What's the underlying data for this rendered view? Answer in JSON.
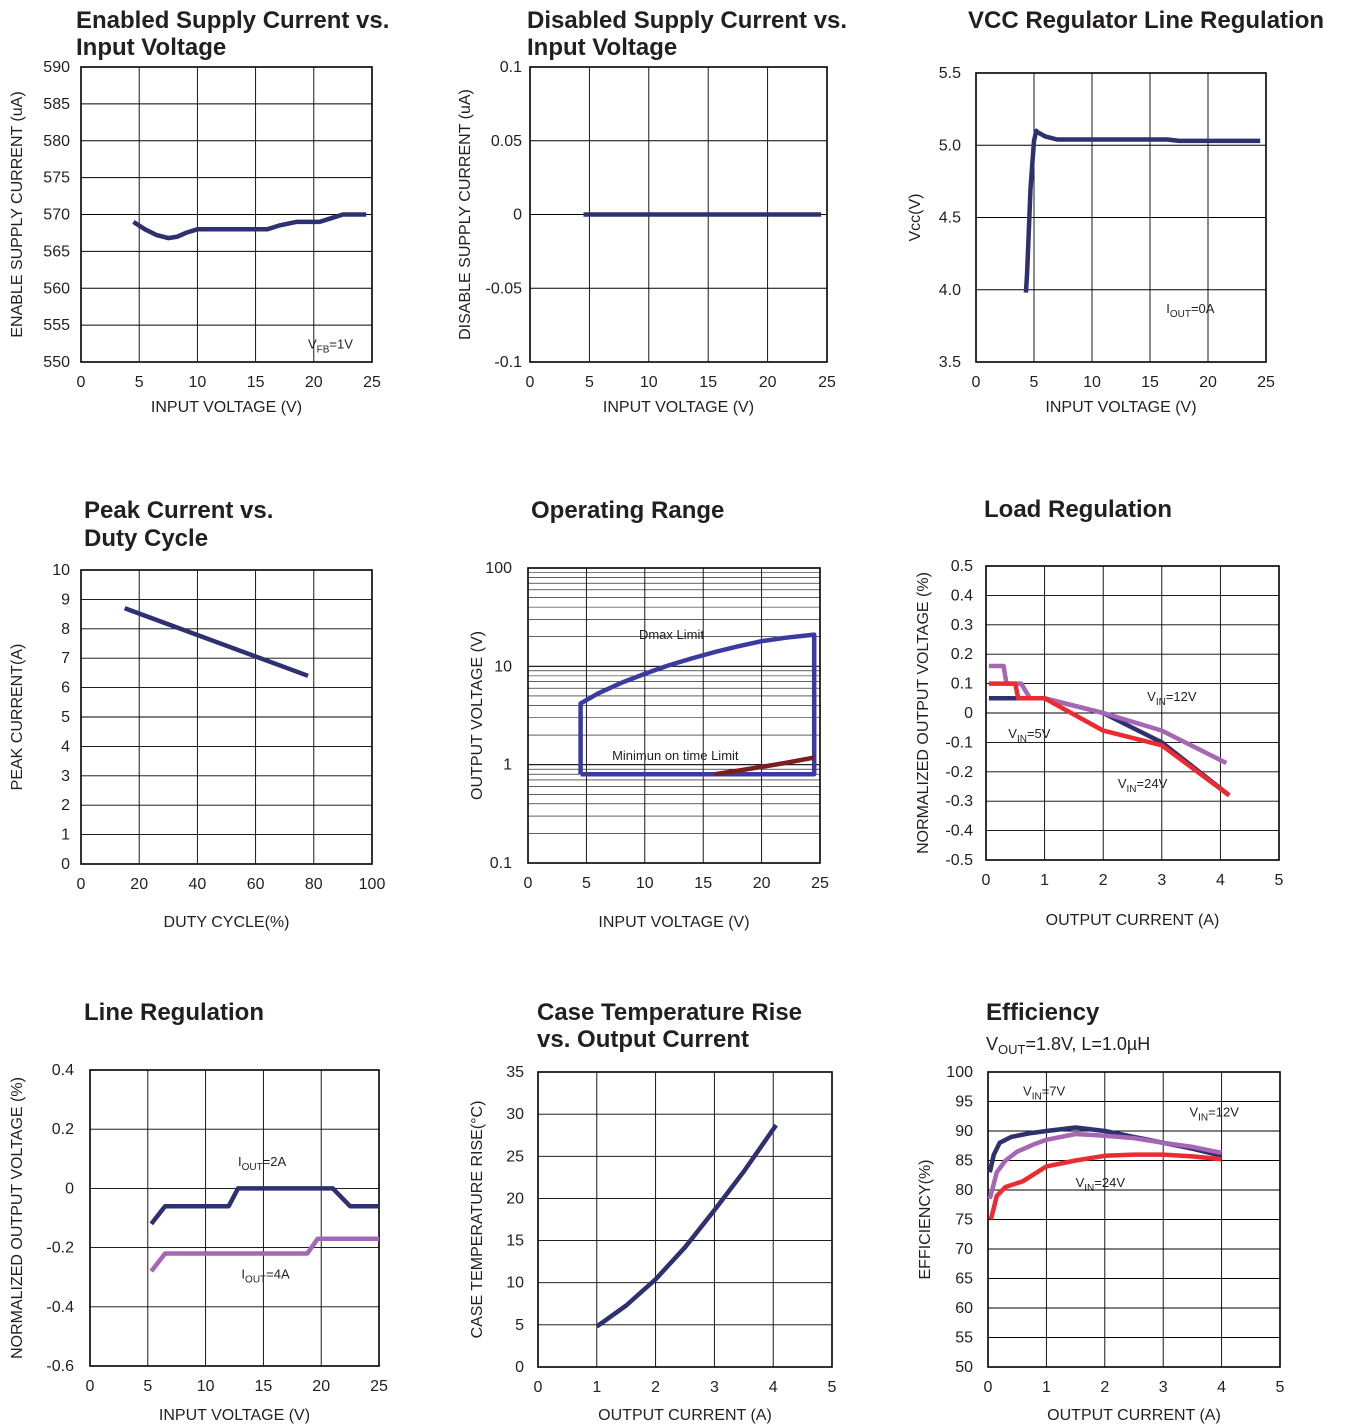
{
  "chart_data": [
    {
      "id": "enabled_supply",
      "type": "line",
      "title": [
        "Enabled Supply Current vs.",
        "Input Voltage"
      ],
      "xlabel": "INPUT VOLTAGE (V)",
      "ylabel": "ENABLE SUPPLY CURRENT (uA)",
      "xlim": [
        0,
        25
      ],
      "ylim": [
        550,
        590
      ],
      "xticks": [
        0,
        5,
        10,
        15,
        20,
        25
      ],
      "xtick_labels": [
        "0",
        "5",
        "10",
        "15",
        "20",
        "25"
      ],
      "yticks": [
        550,
        555,
        560,
        565,
        570,
        575,
        580,
        585,
        590
      ],
      "ytick_labels": [
        "550",
        "555",
        "560",
        "565",
        "570",
        "575",
        "580",
        "585",
        "590"
      ],
      "series": [
        {
          "color": "#2e3070",
          "x": [
            4.5,
            5.5,
            6.5,
            7.5,
            8.3,
            9,
            10,
            12,
            14,
            16,
            17,
            18.5,
            20.5,
            21.5,
            22.5,
            24.5
          ],
          "y": [
            569,
            568,
            567.2,
            566.8,
            567,
            567.5,
            568,
            568,
            568,
            568,
            568.5,
            569,
            569,
            569.5,
            570,
            570
          ]
        }
      ],
      "annotations": [
        {
          "text": "V",
          "sub": "FB",
          "rest": "=1V",
          "x": 19.5,
          "y": 551.8
        }
      ]
    },
    {
      "id": "disabled_supply",
      "type": "line",
      "title": [
        "Disabled Supply Current vs.",
        "Input Voltage"
      ],
      "xlabel": "INPUT VOLTAGE (V)",
      "ylabel": "DISABLE SUPPLY CURRENT (uA)",
      "xlim": [
        0,
        25
      ],
      "ylim": [
        -0.1,
        0.1
      ],
      "xticks": [
        0,
        5,
        10,
        15,
        20,
        25
      ],
      "xtick_labels": [
        "0",
        "5",
        "10",
        "15",
        "20",
        "25"
      ],
      "yticks": [
        -0.1,
        -0.05,
        0,
        0.05,
        0.1
      ],
      "ytick_labels": [
        "-0.1",
        "-0.05",
        "0",
        "0.05",
        "0.1"
      ],
      "series": [
        {
          "color": "#2e3070",
          "x": [
            4.5,
            24.5
          ],
          "y": [
            0,
            0
          ]
        }
      ],
      "annotations": []
    },
    {
      "id": "vcc_regulator",
      "type": "line",
      "title": [
        "VCC Regulator Line Regulation"
      ],
      "xlabel": "INPUT VOLTAGE (V)",
      "ylabel": "Vcc(V)",
      "xlim": [
        0,
        25
      ],
      "ylim": [
        3.5,
        5.5
      ],
      "xticks": [
        0,
        5,
        10,
        15,
        20,
        25
      ],
      "xtick_labels": [
        "0",
        "5",
        "10",
        "15",
        "20",
        "25"
      ],
      "yticks": [
        3.5,
        4.0,
        4.5,
        5.0,
        5.5
      ],
      "ytick_labels": [
        "3.5",
        "4.0",
        "4.5",
        "5.0",
        "5.5"
      ],
      "series": [
        {
          "color": "#2e3070",
          "x": [
            4.3,
            4.4,
            4.5,
            4.7,
            5.0,
            5.2,
            5.3,
            6.0,
            7.0,
            10,
            16.5,
            17.5,
            24.5
          ],
          "y": [
            3.98,
            4.1,
            4.3,
            4.7,
            5.03,
            5.1,
            5.09,
            5.06,
            5.04,
            5.04,
            5.04,
            5.03,
            5.03
          ]
        }
      ],
      "annotations": [
        {
          "text": "I",
          "sub": "OUT",
          "rest": "=0A",
          "x": 16.4,
          "y": 3.84
        }
      ]
    },
    {
      "id": "peak_current",
      "type": "line",
      "title": [
        "Peak Current vs.",
        "Duty Cycle"
      ],
      "xlabel": "DUTY CYCLE(%)",
      "ylabel": "PEAK CURRENT(A)",
      "xlim": [
        0,
        100
      ],
      "ylim": [
        0,
        10
      ],
      "xticks": [
        0,
        20,
        40,
        60,
        80,
        100
      ],
      "xtick_labels": [
        "0",
        "20",
        "40",
        "60",
        "80",
        "100"
      ],
      "yticks": [
        0,
        1,
        2,
        3,
        4,
        5,
        6,
        7,
        8,
        9,
        10
      ],
      "ytick_labels": [
        "0",
        "1",
        "2",
        "3",
        "4",
        "5",
        "6",
        "7",
        "8",
        "9",
        "10"
      ],
      "series": [
        {
          "color": "#2e3070",
          "x": [
            15,
            78
          ],
          "y": [
            8.7,
            6.4
          ]
        }
      ],
      "annotations": []
    },
    {
      "id": "operating_range",
      "type": "line",
      "title": [
        "Operating Range"
      ],
      "xlabel": "INPUT VOLTAGE (V)",
      "ylabel": "OUTPUT VOLTAGE (V)",
      "xlim": [
        0,
        25
      ],
      "ylim": [
        0.1,
        100
      ],
      "yscale": "log",
      "xticks": [
        0,
        5,
        10,
        15,
        20,
        25
      ],
      "xtick_labels": [
        "0",
        "5",
        "10",
        "15",
        "20",
        "25"
      ],
      "yticks": [
        0.1,
        1,
        10,
        100
      ],
      "ytick_labels": [
        "0.1",
        "1",
        "10",
        "100"
      ],
      "series": [
        {
          "color": "#3a3aa0",
          "x": [
            4.5,
            4.5,
            6,
            8,
            10,
            12,
            14,
            16,
            18,
            20,
            22,
            24.5,
            24.5,
            4.5
          ],
          "y": [
            0.8,
            4.2,
            5.3,
            6.8,
            8.4,
            10.2,
            12,
            14,
            16,
            18,
            19.5,
            21,
            0.8,
            0.8
          ]
        },
        {
          "color": "#7a1e1e",
          "x": [
            16,
            18,
            20,
            22,
            24.5
          ],
          "y": [
            0.8,
            0.87,
            0.95,
            1.04,
            1.18
          ]
        }
      ],
      "annotations": [
        {
          "text": "Dmax Limit",
          "x": 9.5,
          "y": 19
        },
        {
          "text": "Minimun on time Limit",
          "x": 7.2,
          "y": 1.12
        }
      ]
    },
    {
      "id": "load_regulation",
      "type": "line",
      "title": [
        "Load Regulation"
      ],
      "xlabel": "OUTPUT CURRENT (A)",
      "ylabel": "NORMALIZED OUTPUT VOLTAGE (%)",
      "xlim": [
        0,
        5
      ],
      "ylim": [
        -0.5,
        0.5
      ],
      "xticks": [
        0,
        1,
        2,
        3,
        4,
        5
      ],
      "xtick_labels": [
        "0",
        "1",
        "2",
        "3",
        "4",
        "5"
      ],
      "yticks": [
        -0.5,
        -0.4,
        -0.3,
        -0.2,
        -0.1,
        0,
        0.1,
        0.2,
        0.3,
        0.4,
        0.5
      ],
      "ytick_labels": [
        "-0.5",
        "-0.4",
        "-0.3",
        "-0.2",
        "-0.1",
        "0",
        "0.1",
        "0.2",
        "0.3",
        "0.4",
        "0.5"
      ],
      "series": [
        {
          "name": "VIN=5V",
          "color": "#2e3070",
          "x": [
            0.05,
            1.0,
            2.0,
            3.0,
            4.15
          ],
          "y": [
            0.05,
            0.05,
            0.0,
            -0.1,
            -0.28
          ]
        },
        {
          "name": "VIN=12V",
          "color": "#a566b4",
          "x": [
            0.05,
            0.3,
            0.35,
            0.6,
            0.75,
            1.0,
            2.0,
            3.0,
            4.1
          ],
          "y": [
            0.16,
            0.16,
            0.1,
            0.1,
            0.05,
            0.05,
            0.0,
            -0.06,
            -0.17
          ]
        },
        {
          "name": "VIN=24V",
          "color": "#ec2a2f",
          "x": [
            0.05,
            0.5,
            0.55,
            1.0,
            2.0,
            3.0,
            4.15
          ],
          "y": [
            0.1,
            0.1,
            0.05,
            0.05,
            -0.06,
            -0.11,
            -0.28
          ]
        }
      ],
      "annotations": [
        {
          "text": "V",
          "sub": "IN",
          "rest": "=5V",
          "x": 0.38,
          "y": -0.085
        },
        {
          "text": "V",
          "sub": "IN",
          "rest": "=12V",
          "x": 2.75,
          "y": 0.04
        },
        {
          "text": "V",
          "sub": "IN",
          "rest": "=24V",
          "x": 2.25,
          "y": -0.255
        }
      ]
    },
    {
      "id": "line_regulation",
      "type": "line",
      "title": [
        "Line Regulation"
      ],
      "xlabel": "INPUT VOLTAGE (V)",
      "ylabel": "NORMALIZED OUTPUT VOLTAGE (%)",
      "xlim": [
        0,
        25
      ],
      "ylim": [
        -0.6,
        0.4
      ],
      "xticks": [
        0,
        5,
        10,
        15,
        20,
        25
      ],
      "xtick_labels": [
        "0",
        "5",
        "10",
        "15",
        "20",
        "25"
      ],
      "yticks": [
        -0.6,
        -0.4,
        -0.2,
        0,
        0.2,
        0.4
      ],
      "ytick_labels": [
        "-0.6",
        "-0.4",
        "-0.2",
        "0",
        "0.2",
        "0.4"
      ],
      "series": [
        {
          "name": "IOUT=2A",
          "color": "#2e3070",
          "x": [
            5.3,
            6.5,
            12,
            12.8,
            21,
            22.5,
            25
          ],
          "y": [
            -0.12,
            -0.06,
            -0.06,
            0,
            0,
            -0.06,
            -0.06
          ]
        },
        {
          "name": "IOUT=4A",
          "color": "#a566b4",
          "x": [
            5.3,
            6.5,
            18.8,
            19.7,
            25
          ],
          "y": [
            -0.28,
            -0.22,
            -0.22,
            -0.17,
            -0.17
          ]
        }
      ],
      "annotations": [
        {
          "text": "I",
          "sub": "OUT",
          "rest": "=2A",
          "x": 12.8,
          "y": 0.075
        },
        {
          "text": "I",
          "sub": "OUT",
          "rest": "=4A",
          "x": 13.1,
          "y": -0.305
        }
      ]
    },
    {
      "id": "case_temperature",
      "type": "line",
      "title": [
        "Case Temperature Rise",
        "vs. Output Current"
      ],
      "xlabel": "OUTPUT CURRENT (A)",
      "ylabel": "CASE TEMPERATURE RISE(°C)",
      "xlim": [
        0,
        5
      ],
      "ylim": [
        0,
        35
      ],
      "xticks": [
        0,
        1,
        2,
        3,
        4,
        5
      ],
      "xtick_labels": [
        "0",
        "1",
        "2",
        "3",
        "4",
        "5"
      ],
      "yticks": [
        0,
        5,
        10,
        15,
        20,
        25,
        30,
        35
      ],
      "ytick_labels": [
        "0",
        "5",
        "10",
        "15",
        "20",
        "25",
        "30",
        "35"
      ],
      "series": [
        {
          "color": "#2e3070",
          "x": [
            1.0,
            1.5,
            2.0,
            2.5,
            3.0,
            3.5,
            4.05
          ],
          "y": [
            4.8,
            7.3,
            10.4,
            14.2,
            18.6,
            23.2,
            28.7
          ]
        }
      ],
      "annotations": []
    },
    {
      "id": "efficiency",
      "type": "line",
      "title": [
        "Efficiency"
      ],
      "subtitle": {
        "text": "V",
        "sub": "OUT",
        "rest": "=1.8V, L=1.0µH"
      },
      "xlabel": "OUTPUT CURRENT (A)",
      "ylabel": "EFFICIENCY(%)",
      "xlim": [
        0,
        5
      ],
      "ylim": [
        50,
        100
      ],
      "xticks": [
        0,
        1,
        2,
        3,
        4,
        5
      ],
      "xtick_labels": [
        "0",
        "1",
        "2",
        "3",
        "4",
        "5"
      ],
      "yticks": [
        50,
        55,
        60,
        65,
        70,
        75,
        80,
        85,
        90,
        95,
        100
      ],
      "ytick_labels": [
        "50",
        "55",
        "60",
        "65",
        "70",
        "75",
        "80",
        "85",
        "90",
        "95",
        "100"
      ],
      "series": [
        {
          "name": "VIN=7V",
          "color": "#2e3070",
          "x": [
            0.03,
            0.1,
            0.2,
            0.4,
            0.7,
            1.0,
            1.5,
            2.0,
            2.5,
            3.0,
            3.5,
            4.0
          ],
          "y": [
            83,
            86,
            88,
            89,
            89.6,
            90,
            90.6,
            90,
            89,
            88,
            87,
            85.8
          ]
        },
        {
          "name": "VIN=12V",
          "color": "#a566b4",
          "x": [
            0.03,
            0.15,
            0.3,
            0.5,
            0.8,
            1.0,
            1.5,
            2.0,
            2.5,
            3.0,
            3.5,
            4.0
          ],
          "y": [
            78.5,
            83,
            85,
            86.5,
            87.8,
            88.5,
            89.5,
            89.2,
            88.8,
            88,
            87.3,
            86.3
          ]
        },
        {
          "name": "VIN=24V",
          "color": "#ec2a2f",
          "x": [
            0.05,
            0.15,
            0.3,
            0.6,
            1.0,
            1.5,
            2.0,
            2.5,
            3.0,
            3.5,
            4.0
          ],
          "y": [
            75,
            79,
            80.5,
            81.5,
            84,
            85,
            85.8,
            86,
            86,
            85.7,
            85.2
          ]
        }
      ],
      "annotations": [
        {
          "text": "V",
          "sub": "IN",
          "rest": "=7V",
          "x": 0.6,
          "y": 96
        },
        {
          "text": "V",
          "sub": "IN",
          "rest": "=12V",
          "x": 3.45,
          "y": 92.5
        },
        {
          "text": "V",
          "sub": "IN",
          "rest": "=24V",
          "x": 1.5,
          "y": 80.5
        }
      ]
    }
  ]
}
